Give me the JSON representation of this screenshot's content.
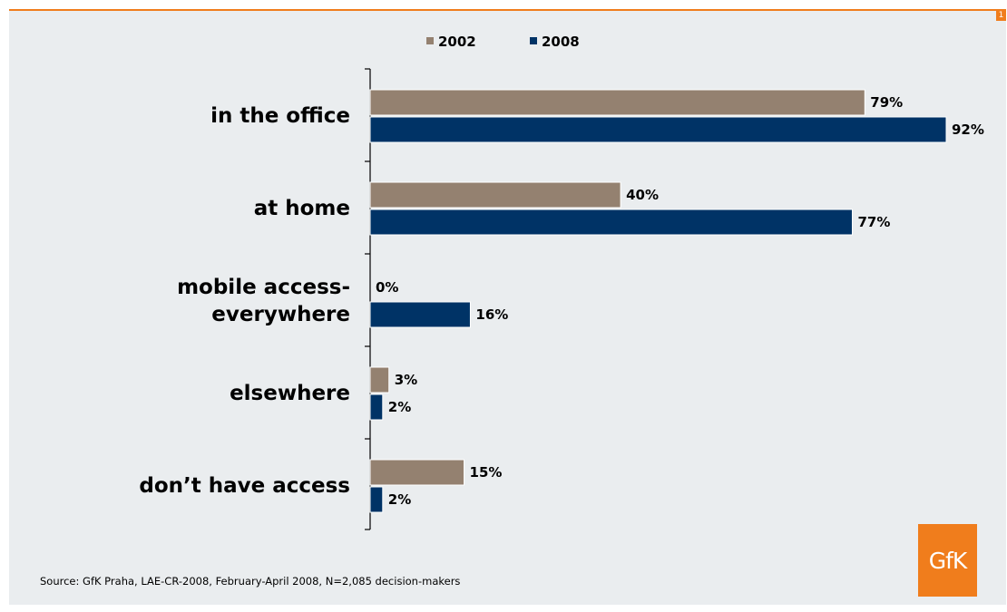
{
  "page_number": "1",
  "logo_text": "GfK",
  "source": "Source: GfK Praha, LAE-CR-2008, February-April 2008, N=2,085 decision-makers",
  "colors": {
    "s2002": "#948170",
    "s2008": "#003366",
    "accent": "#f07d1c"
  },
  "chart_data": {
    "type": "bar",
    "orientation": "horizontal",
    "categories": [
      [
        "in the office"
      ],
      [
        "at home"
      ],
      [
        "mobile access-",
        "everywhere"
      ],
      [
        "elsewhere"
      ],
      [
        "don’t have access"
      ]
    ],
    "series": [
      {
        "name": "2002",
        "values": [
          79,
          40,
          0,
          3,
          15
        ],
        "labels": [
          "79%",
          "40%",
          "0%",
          "3%",
          "15%"
        ]
      },
      {
        "name": "2008",
        "values": [
          92,
          77,
          16,
          2,
          2
        ],
        "labels": [
          "92%",
          "77%",
          "16%",
          "2%",
          "2%"
        ]
      }
    ],
    "xlim": [
      0,
      92
    ],
    "legend_position": "top",
    "grid": false
  }
}
